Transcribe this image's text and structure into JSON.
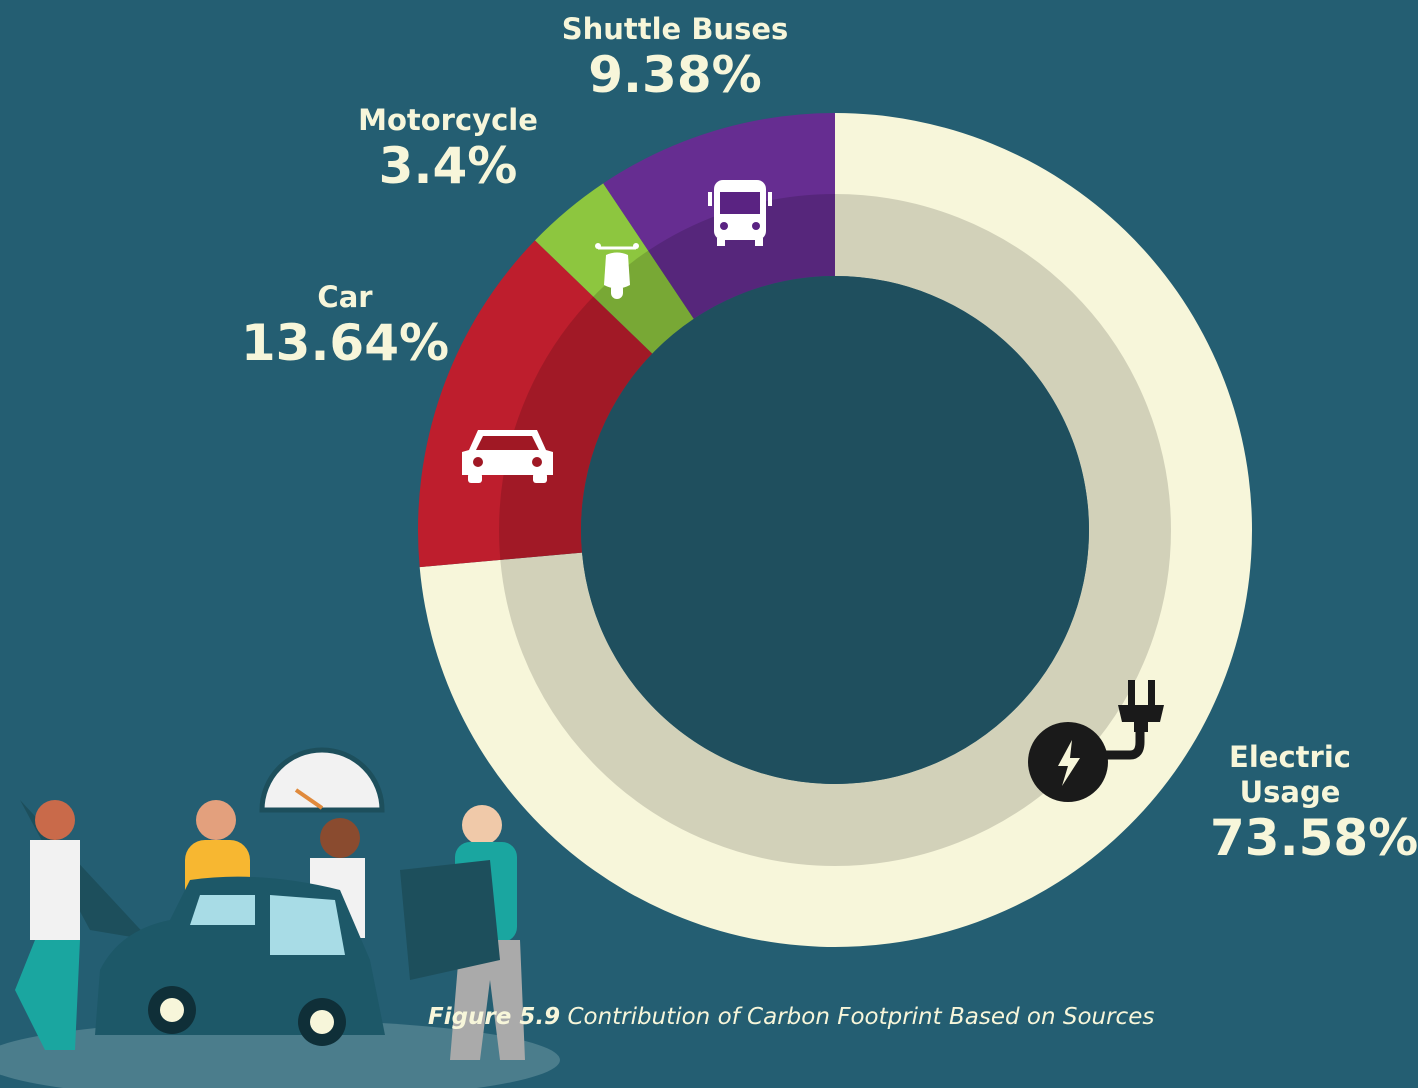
{
  "chart_data": {
    "type": "donut",
    "categories": [
      "Electric Usage",
      "Car",
      "Motorcycle",
      "Shuttle Buses"
    ],
    "values": [
      73.58,
      13.64,
      3.4,
      9.38
    ],
    "value_labels": [
      "73.58%",
      "13.64%",
      "3.4%",
      "9.38%"
    ],
    "colors": [
      "#f7f6da",
      "#be1e2d",
      "#8dc63f",
      "#662d91"
    ],
    "caption_label": "Figure 5.9",
    "caption": "Contribution of  Carbon Footprint Based on Sources"
  }
}
